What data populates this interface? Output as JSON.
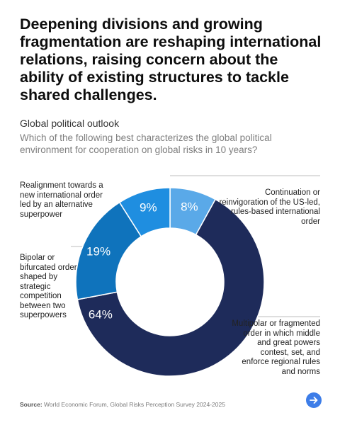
{
  "headline": "Deepening divisions and growing fragmentation are reshaping international relations, raising concern about the ability of existing structures to tackle shared challenges.",
  "source": {
    "label": "Source:",
    "text": "World Economic Forum, Global Risks Perception Survey 2024-2025"
  },
  "next_button": {
    "icon": "arrow-right-icon"
  },
  "chart_data": {
    "type": "pie",
    "donut": true,
    "title": "Global political outlook",
    "subtitle": "Which of the following best characterizes the global political environment for cooperation on global risks in 10 years?",
    "slices": [
      {
        "name": "Continuation or reinvigoration of the US-led, rules-based international order",
        "value": 8,
        "label": "8%",
        "color": "#5aa9e8"
      },
      {
        "name": "Multipolar or fragmented order in which middle and great powers contest, set, and enforce regional rules and norms",
        "value": 64,
        "label": "64%",
        "color": "#1e2b5a"
      },
      {
        "name": "Bipolar or bifurcated order shaped by strategic competition between two superpowers",
        "value": 19,
        "label": "19%",
        "color": "#0f73bc"
      },
      {
        "name": "Realignment towards a new international order led by an alternative superpower",
        "value": 9,
        "label": "9%",
        "color": "#1f8ee0"
      }
    ]
  }
}
